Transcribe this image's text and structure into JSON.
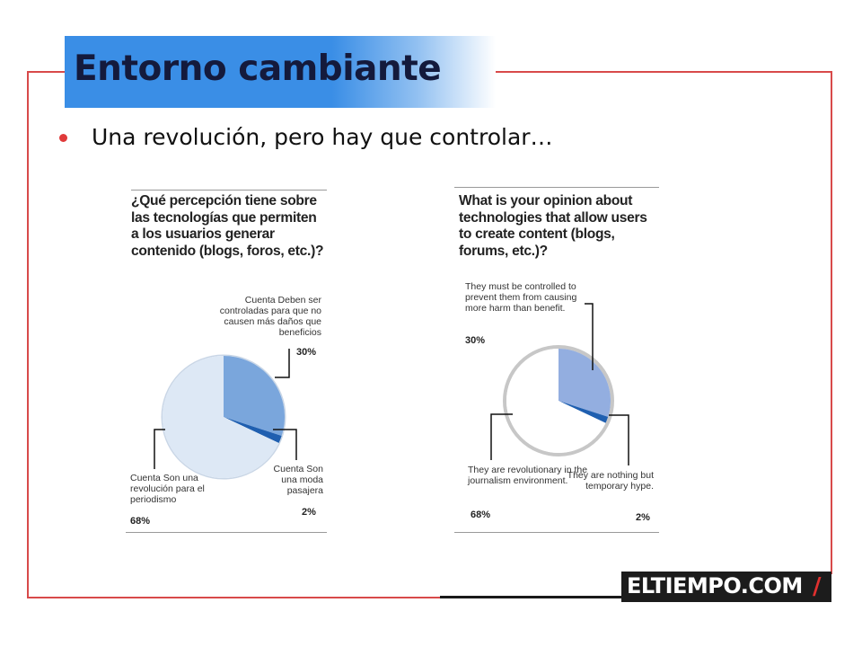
{
  "slide": {
    "title": "Entorno cambiante",
    "bullet": "Una revolución, pero hay que controlar…",
    "logo_text": "ELTIEMPO.COM",
    "logo_mark": "/",
    "colors": {
      "title_band": "#3a8ee6",
      "frame": "#d84a4a",
      "bullet": "#e03a3a",
      "logo_accent": "#e0302f"
    }
  },
  "chart_data": [
    {
      "type": "pie",
      "title": "¿Qué percepción tiene sobre las tecnologías que permiten a los usuarios generar contenido (blogs, foros, etc.)?",
      "slices": [
        {
          "label": "Cuenta Deben ser controladas para que no causen más daños que beneficios",
          "value": 30,
          "value_label": "30%",
          "color": "#7aa6dc"
        },
        {
          "label": "Cuenta Son una moda pasajera",
          "value": 2,
          "value_label": "2%",
          "color": "#1f5fb0"
        },
        {
          "label": "Cuenta Son una revolución para el periodismo",
          "value": 68,
          "value_label": "68%",
          "color": "#dde8f5"
        }
      ],
      "legend": "callouts"
    },
    {
      "type": "pie",
      "title": "What is your opinion about technologies that allow users to create content (blogs, forums, etc.)?",
      "slices": [
        {
          "label": "They must be controlled to prevent them from causing more harm than benefit.",
          "value": 30,
          "value_label": "30%",
          "color": "#93aee0"
        },
        {
          "label": "They are nothing but temporary hype.",
          "value": 2,
          "value_label": "2%",
          "color": "#1f5fb0"
        },
        {
          "label": "They are revolutionary in the journalism environment.",
          "value": 68,
          "value_label": "68%",
          "color": "#ffffff"
        }
      ],
      "legend": "callouts"
    }
  ]
}
